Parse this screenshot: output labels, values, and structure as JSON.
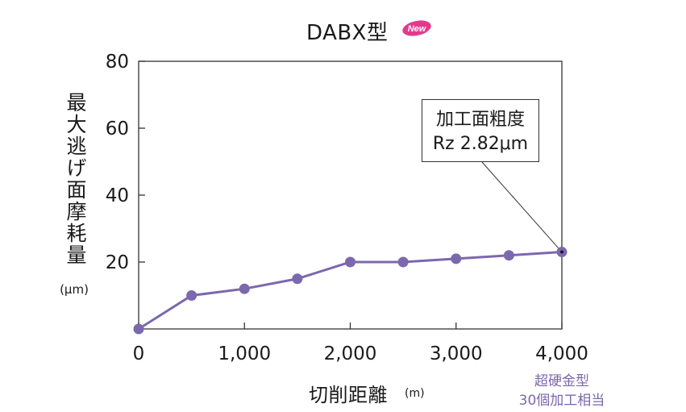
{
  "colors": {
    "series": "#7b68ad",
    "axis": "#333333",
    "note": "#7b68ad"
  },
  "badge": {
    "text": "New"
  },
  "annotation": {
    "line1": "加工面粗度",
    "line2": "Rz 2.82μm"
  },
  "note": {
    "line1": "超硬金型",
    "line2": "30個加工相当"
  },
  "chart_data": {
    "type": "line",
    "title": "DABX型",
    "xlabel": "切削距離",
    "xlabel_unit": "(m)",
    "ylabel": "最大逃げ面摩耗量",
    "ylabel_unit": "(μm)",
    "xlim": [
      0,
      4000
    ],
    "ylim": [
      0,
      80
    ],
    "x_ticks": [
      0,
      1000,
      2000,
      3000,
      4000
    ],
    "x_tick_labels": [
      "0",
      "1,000",
      "2,000",
      "3,000",
      "4,000"
    ],
    "y_ticks": [
      20,
      40,
      60,
      80
    ],
    "y_tick_labels": [
      "20",
      "40",
      "60",
      "80"
    ],
    "grid": false,
    "series": [
      {
        "x": [
          0,
          500,
          1000,
          1500,
          2000,
          2500,
          3000,
          3500,
          4000
        ],
        "values": [
          0,
          10,
          12,
          15,
          20,
          20,
          21,
          22,
          23
        ]
      }
    ]
  }
}
